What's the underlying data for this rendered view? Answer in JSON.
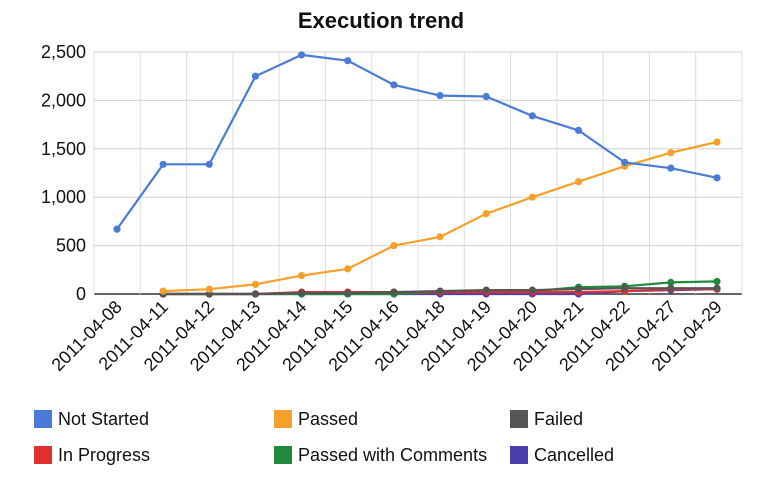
{
  "chart_data": {
    "type": "line",
    "title": "Execution trend",
    "categories": [
      "2011-04-08",
      "2011-04-11",
      "2011-04-12",
      "2011-04-13",
      "2011-04-14",
      "2011-04-15",
      "2011-04-16",
      "2011-04-18",
      "2011-04-19",
      "2011-04-20",
      "2011-04-21",
      "2011-04-22",
      "2011-04-27",
      "2011-04-29"
    ],
    "y_ticks": [
      "0",
      "500",
      "1,000",
      "1,500",
      "2,000",
      "2,500"
    ],
    "ylim": [
      0,
      2500
    ],
    "grid": true,
    "legend_position": "bottom",
    "series": [
      {
        "name": "Not Started",
        "color": "#4a7bd6",
        "values": [
          670,
          1340,
          1340,
          2250,
          2470,
          2410,
          2160,
          2050,
          2040,
          1840,
          1690,
          1360,
          1300,
          1200
        ]
      },
      {
        "name": "Passed",
        "color": "#f4a02a",
        "values": [
          null,
          30,
          50,
          100,
          190,
          260,
          500,
          590,
          830,
          1000,
          1160,
          1320,
          1460,
          1570
        ]
      },
      {
        "name": "Failed",
        "color": "#555555",
        "values": [
          null,
          0,
          0,
          0,
          10,
          10,
          20,
          30,
          40,
          40,
          50,
          60,
          60,
          60
        ]
      },
      {
        "name": "In Progress",
        "color": "#e03030",
        "values": [
          null,
          0,
          0,
          0,
          20,
          20,
          20,
          20,
          20,
          20,
          20,
          30,
          50,
          50
        ]
      },
      {
        "name": "Passed with Comments",
        "color": "#1f8a3a",
        "values": [
          null,
          0,
          0,
          0,
          0,
          0,
          0,
          20,
          30,
          30,
          70,
          80,
          120,
          130
        ]
      },
      {
        "name": "Cancelled",
        "color": "#4b3fb0",
        "values": [
          null,
          0,
          0,
          0,
          0,
          0,
          0,
          0,
          0,
          0,
          0,
          30,
          40,
          50
        ]
      }
    ]
  }
}
